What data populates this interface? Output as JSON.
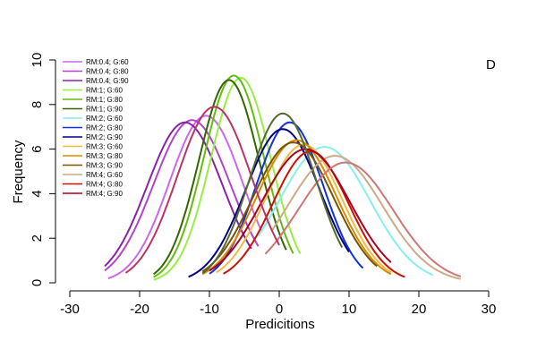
{
  "chart_data": {
    "type": "line",
    "panel_label": "D",
    "xlabel": "Predicitions",
    "ylabel": "Frequency",
    "xlim": [
      -30,
      30
    ],
    "ylim": [
      0,
      10
    ],
    "x_ticks": [
      -30,
      -20,
      -10,
      0,
      10,
      20,
      30
    ],
    "y_ticks": [
      0,
      2,
      4,
      6,
      8,
      10
    ],
    "legend_position": "top-left",
    "grid": false,
    "series": [
      {
        "name": "RM:0.4; G:60",
        "color": "#cc66ee",
        "mean": -10.5,
        "sd": 5.2,
        "peak": 7.5,
        "x_range": [
          -24.5,
          -2.5
        ]
      },
      {
        "name": "RM:0.4; G:80",
        "color": "#b044cc",
        "mean": -12.5,
        "sd": 5.5,
        "peak": 7.3,
        "x_range": [
          -25,
          -3
        ]
      },
      {
        "name": "RM:0.4; G:90",
        "color": "#8822aa",
        "mean": -13.5,
        "sd": 5.4,
        "peak": 7.2,
        "x_range": [
          -25,
          -4
        ]
      },
      {
        "name": "RM:1; G:60",
        "color": "#99ee44",
        "mean": -5.5,
        "sd": 4.3,
        "peak": 9.2,
        "x_range": [
          -18,
          3
        ]
      },
      {
        "name": "RM:1; G:80",
        "color": "#66bb11",
        "mean": -6.5,
        "sd": 4.3,
        "peak": 9.3,
        "x_range": [
          -18,
          2
        ]
      },
      {
        "name": "RM:1; G:90",
        "color": "#336600",
        "mean": -7.2,
        "sd": 4.3,
        "peak": 9.1,
        "x_range": [
          -18,
          1
        ]
      },
      {
        "name": "RM:2; G:60",
        "color": "#88eeee",
        "mean": 6.5,
        "sd": 6.5,
        "peak": 6.1,
        "x_range": [
          -3,
          22
        ]
      },
      {
        "name": "RM:2; G:80",
        "color": "#1133dd",
        "mean": 1.5,
        "sd": 4.8,
        "peak": 7.2,
        "x_range": [
          -10,
          12
        ]
      },
      {
        "name": "RM:2; G:90",
        "color": "#000088",
        "mean": 0.5,
        "sd": 5.3,
        "peak": 6.9,
        "x_range": [
          -13,
          10
        ]
      },
      {
        "name": "RM:3; G:60",
        "color": "#eebb44",
        "mean": 3.5,
        "sd": 5.5,
        "peak": 6.2,
        "x_range": [
          -9,
          16
        ]
      },
      {
        "name": "RM:3; G:80",
        "color": "#dd8800",
        "mean": 2.5,
        "sd": 5.7,
        "peak": 6.4,
        "x_range": [
          -11,
          16
        ]
      },
      {
        "name": "RM:3; G:90",
        "color": "#775500",
        "mean": 2,
        "sd": 5.8,
        "peak": 6.3,
        "x_range": [
          -11,
          14
        ]
      },
      {
        "name": "RM:4; G:60",
        "color": "#ccaa88",
        "mean": 8,
        "sd": 6.8,
        "peak": 5.7,
        "x_range": [
          -1,
          26
        ]
      },
      {
        "name": "RM:4; G:80",
        "color": "#cc1100",
        "mean": 4.5,
        "sd": 5.4,
        "peak": 5.9,
        "x_range": [
          -8,
          18
        ]
      },
      {
        "name": "RM:4; G:90",
        "color": "#aa0022",
        "mean": 3.8,
        "sd": 6.3,
        "peak": 6.0,
        "x_range": [
          -10,
          16
        ]
      },
      {
        "name": "",
        "color": "#cc7777",
        "mean": 9.5,
        "sd": 6.8,
        "peak": 5.4,
        "x_range": [
          -2,
          26
        ]
      },
      {
        "name": "",
        "color": "#bb3366",
        "mean": -9.3,
        "sd": 5.3,
        "peak": 7.9,
        "x_range": [
          -22,
          0
        ]
      },
      {
        "name": "",
        "color": "#556b2f",
        "mean": 0.5,
        "sd": 4.8,
        "peak": 7.6,
        "x_range": [
          -11,
          9
        ]
      }
    ]
  }
}
